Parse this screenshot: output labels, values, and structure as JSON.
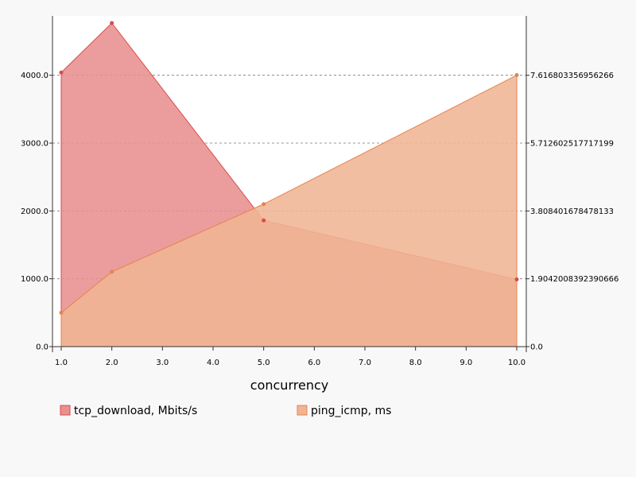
{
  "chart_data": {
    "type": "area",
    "xlabel": "concurrency",
    "x_ticks": [
      "1.0",
      "2.0",
      "3.0",
      "4.0",
      "5.0",
      "6.0",
      "7.0",
      "8.0",
      "9.0",
      "10.0"
    ],
    "xlim": [
      1,
      10
    ],
    "y_left_ticks": [
      "0.0",
      "1000.0",
      "2000.0",
      "3000.0",
      "4000.0"
    ],
    "y_left_lim": [
      0,
      4875
    ],
    "y_right_ticks": [
      "0.0",
      "1.9042008392390666",
      "3.808401678478133",
      "5.712602517717199",
      "7.616803356956266"
    ],
    "y_right_lim": [
      0,
      9.283
    ],
    "grid": "horizontal dashed",
    "legend_position": "bottom",
    "series": [
      {
        "name": "tcp_download, Mbits/s",
        "axis": "left",
        "x": [
          1,
          2,
          5,
          10
        ],
        "values": [
          4040,
          4770,
          1860,
          990
        ],
        "color": "#d94b4b",
        "fill": "#e8908f"
      },
      {
        "name": "ping_icmp, ms",
        "axis": "right",
        "x": [
          1,
          2,
          5,
          10
        ],
        "values": [
          0.95,
          2.1,
          4.0,
          7.62
        ],
        "color": "#e5834f",
        "fill": "#f0b594"
      }
    ]
  }
}
